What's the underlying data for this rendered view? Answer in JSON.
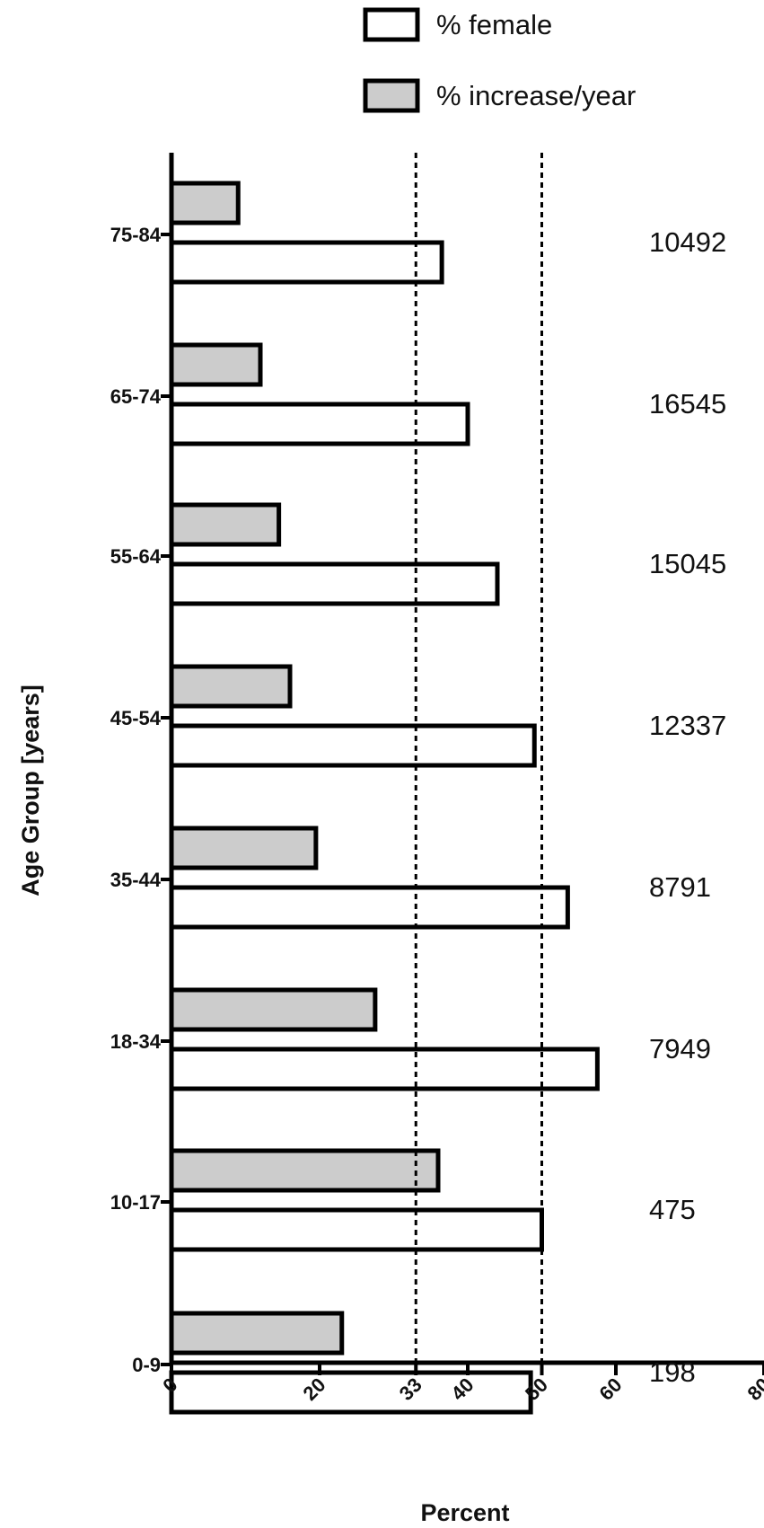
{
  "chart_data": {
    "type": "bar",
    "orientation": "horizontal",
    "categories": [
      "0-9",
      "10-17",
      "18-34",
      "35-44",
      "45-54",
      "55-64",
      "65-74",
      "75-84"
    ],
    "series": [
      {
        "name": "% female",
        "values": [
          48.5,
          50,
          57.5,
          53.5,
          49,
          44,
          40,
          36.5
        ],
        "color": "#ffffff"
      },
      {
        "name": "% increase/year",
        "values": [
          23,
          36,
          27.5,
          19.5,
          16,
          14.5,
          12,
          9
        ],
        "color": "#cccccc"
      }
    ],
    "counts": [
      "198",
      "475",
      "7949",
      "8791",
      "12337",
      "15045",
      "16545",
      "10492"
    ],
    "xlabel": "Percent",
    "ylabel": "Age  Group [years]",
    "xlim": [
      0,
      80
    ],
    "xticks": [
      "0",
      "20",
      "33",
      "40",
      "50",
      "60",
      "80"
    ],
    "xtick_values": [
      0,
      20,
      33,
      40,
      50,
      60,
      80
    ],
    "reference_lines": [
      33,
      50
    ],
    "legend_position": "top-right",
    "grid": false
  }
}
